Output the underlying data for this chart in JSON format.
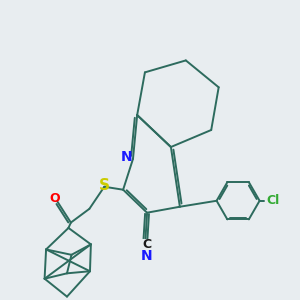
{
  "bg_color": "#e8edf0",
  "bond_color": "#2d6b5e",
  "n_color": "#1a1aff",
  "o_color": "#ff0000",
  "s_color": "#cccc00",
  "cl_color": "#33aa33",
  "c_color": "#1a1a1a",
  "line_width": 1.4,
  "font_size": 9,
  "figsize": [
    3.0,
    3.0
  ],
  "dpi": 100,
  "xlim": [
    0,
    10
  ],
  "ylim": [
    0,
    10
  ]
}
